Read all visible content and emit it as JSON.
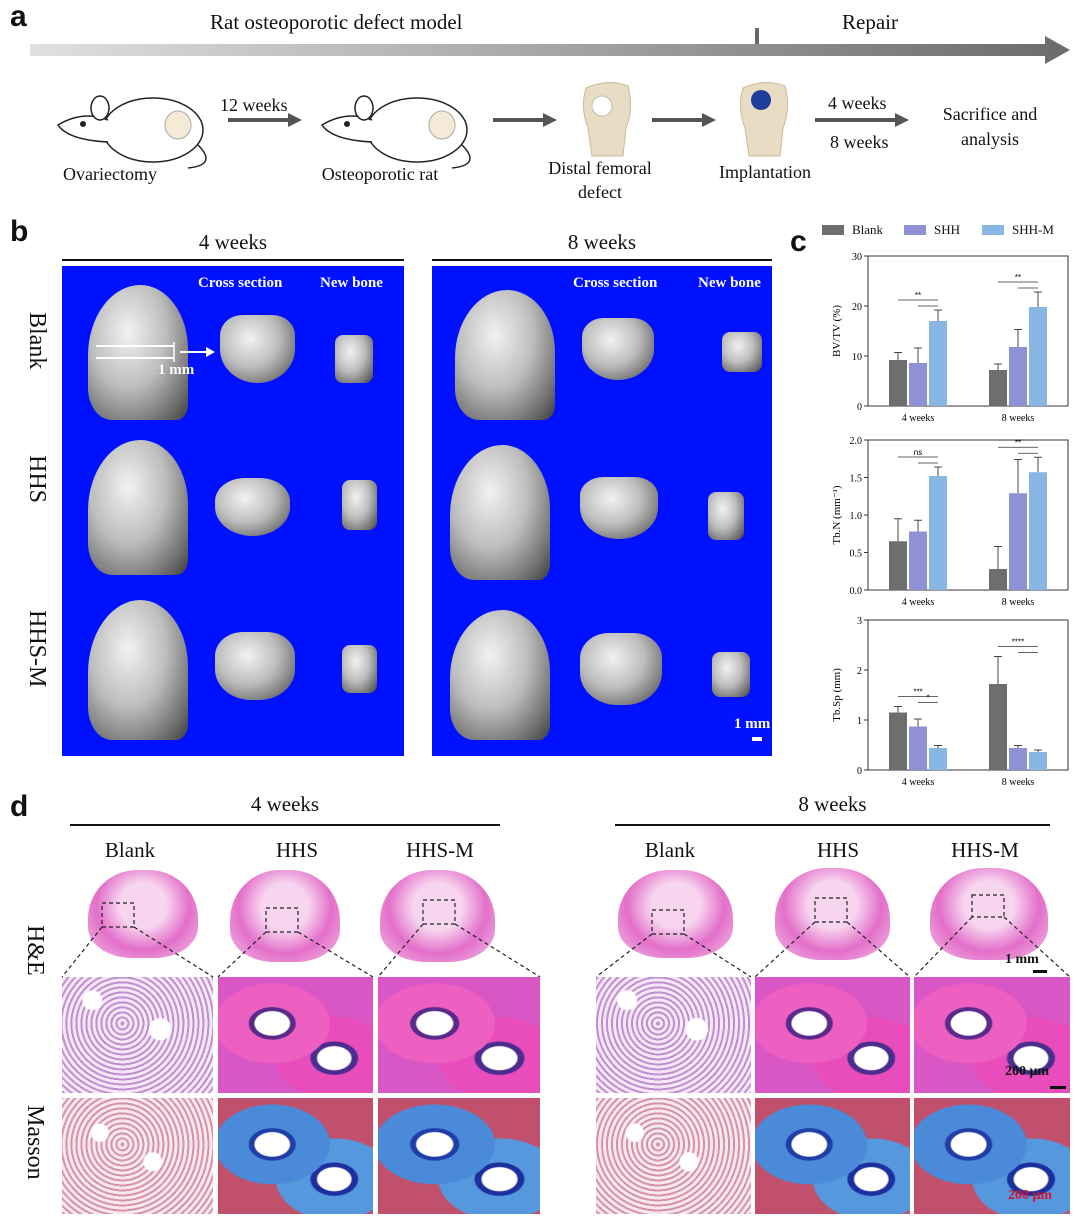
{
  "panels": {
    "a": "a",
    "b": "b",
    "c": "c",
    "d": "d"
  },
  "panel_a": {
    "timeline_left": "Rat osteoporotic defect model",
    "timeline_right": "Repair",
    "steps": [
      "Ovariectomy",
      "Osteoporotic rat",
      "Distal femoral defect",
      "Implantation",
      "Sacrifice and analysis"
    ],
    "arrow1_label": "12 weeks",
    "arrow4_labels": [
      "4 weeks",
      "8 weeks"
    ]
  },
  "panel_b": {
    "group_titles": [
      "4 weeks",
      "8 weeks"
    ],
    "col_headers": [
      "Cross section",
      "New bone"
    ],
    "rows": [
      "Blank",
      "HHS",
      "HHS-M"
    ],
    "marker_label": "1 mm",
    "scale_label": "1 mm",
    "background_color": "#0011ff"
  },
  "panel_d": {
    "group_titles": [
      "4 weeks",
      "8 weeks"
    ],
    "col_headers": [
      "Blank",
      "HHS",
      "HHS-M",
      "Blank",
      "HHS",
      "HHS-M"
    ],
    "rows": [
      "H&E",
      "Masson"
    ],
    "scale_top": "1 mm",
    "scale_he": "200 μm",
    "scale_masson": "200 μm"
  },
  "chart_data": [
    {
      "type": "bar",
      "legend": [
        "Blank",
        "SHH",
        "SHH-M"
      ],
      "colors": [
        "#6e6e6e",
        "#8e92d4",
        "#88b7e3"
      ],
      "categories": [
        "4 weeks",
        "8 weeks"
      ],
      "ylabel": "BV/TV (%)",
      "ylim": [
        0,
        30
      ],
      "yticks": [
        "0",
        "10",
        "20",
        "30"
      ],
      "series": [
        {
          "name": "Blank",
          "values": [
            9.2,
            7.2
          ],
          "errors": [
            1.5,
            1.2
          ]
        },
        {
          "name": "SHH",
          "values": [
            8.6,
            11.8
          ],
          "errors": [
            3.0,
            3.5
          ]
        },
        {
          "name": "SHH-M",
          "values": [
            17.0,
            19.8
          ],
          "errors": [
            2.2,
            3.0
          ]
        }
      ],
      "significance": [
        "**",
        "**"
      ]
    },
    {
      "type": "bar",
      "categories": [
        "4 weeks",
        "8 weeks"
      ],
      "ylabel": "Tb.N (mm⁻¹)",
      "ylim": [
        0,
        2.0
      ],
      "yticks": [
        "0.0",
        "0.5",
        "1.0",
        "1.5",
        "2.0"
      ],
      "series": [
        {
          "name": "Blank",
          "values": [
            0.65,
            0.28
          ],
          "errors": [
            0.3,
            0.3
          ]
        },
        {
          "name": "SHH",
          "values": [
            0.78,
            1.29
          ],
          "errors": [
            0.15,
            0.45
          ]
        },
        {
          "name": "SHH-M",
          "values": [
            1.52,
            1.57
          ],
          "errors": [
            0.12,
            0.2
          ]
        }
      ],
      "significance": [
        "ns",
        "**"
      ]
    },
    {
      "type": "bar",
      "categories": [
        "4 weeks",
        "8 weeks"
      ],
      "ylabel": "Tb.Sp (mm)",
      "ylim": [
        0,
        3
      ],
      "yticks": [
        "0",
        "1",
        "2",
        "3"
      ],
      "series": [
        {
          "name": "Blank",
          "values": [
            1.15,
            1.72
          ],
          "errors": [
            0.12,
            0.55
          ]
        },
        {
          "name": "SHH",
          "values": [
            0.87,
            0.44
          ],
          "errors": [
            0.15,
            0.05
          ]
        },
        {
          "name": "SHH-M",
          "values": [
            0.44,
            0.36
          ],
          "errors": [
            0.05,
            0.04
          ]
        }
      ],
      "significance": [
        "***",
        "*",
        "****"
      ]
    }
  ]
}
